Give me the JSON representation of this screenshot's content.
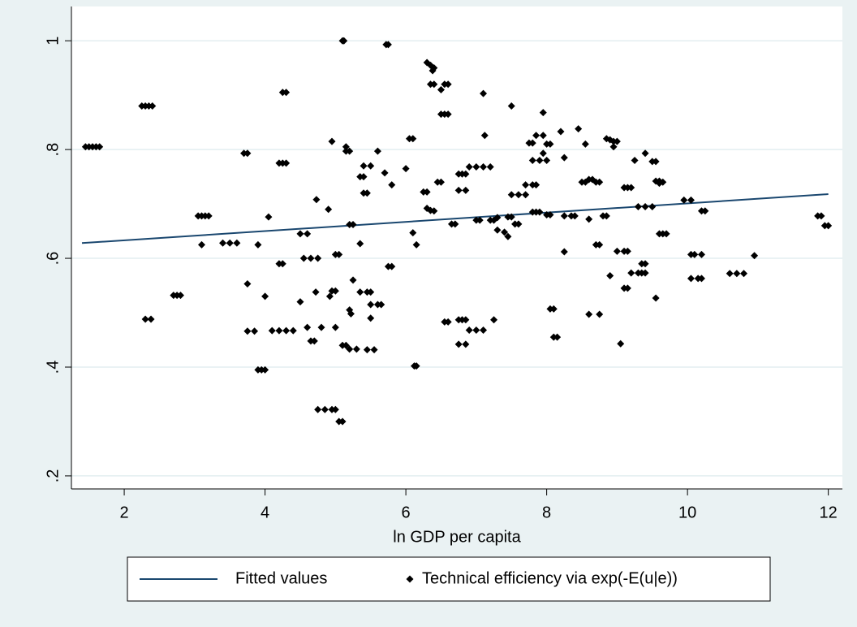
{
  "chart_data": {
    "type": "scatter",
    "x_label": "ln GDP per capita",
    "xlim": [
      1.25,
      12.2
    ],
    "xticks": [
      2,
      4,
      6,
      8,
      10,
      12
    ],
    "ylim": [
      0.176,
      1.063
    ],
    "yticks": [
      {
        "value": 0.2,
        "label": ".2"
      },
      {
        "value": 0.4,
        "label": ".4"
      },
      {
        "value": 0.6,
        "label": ".6"
      },
      {
        "value": 0.8,
        "label": ".8"
      },
      1
    ],
    "grid": true,
    "legend": "bottom",
    "series": [
      {
        "name": "Fitted values",
        "mode": "line",
        "color": "#1a476f",
        "x": [
          1.4,
          12.0
        ],
        "values": [
          0.628,
          0.718
        ]
      },
      {
        "name": "Technical efficiency via exp(-E(u|e))",
        "mode": "markers",
        "color": "#000000",
        "x": [
          1.45,
          1.5,
          1.55,
          1.6,
          1.65,
          2.25,
          2.3,
          2.35,
          2.4,
          2.3,
          2.38,
          2.7,
          2.75,
          2.8,
          3.05,
          3.1,
          3.15,
          3.2,
          3.1,
          3.4,
          3.5,
          3.6,
          3.7,
          3.75,
          3.75,
          3.75,
          3.85,
          3.9,
          3.9,
          3.95,
          4.0,
          4.0,
          4.05,
          4.1,
          4.2,
          4.3,
          4.4,
          4.2,
          4.25,
          4.3,
          4.25,
          4.3,
          4.2,
          4.25,
          4.5,
          4.5,
          4.6,
          4.55,
          4.65,
          4.75,
          4.6,
          4.65,
          4.7,
          4.72,
          4.73,
          4.75,
          4.85,
          4.95,
          5.0,
          4.8,
          4.9,
          4.92,
          4.95,
          5.0,
          4.95,
          5.0,
          5.0,
          5.05,
          5.05,
          5.1,
          5.1,
          5.12,
          5.1,
          5.15,
          5.15,
          5.15,
          5.2,
          5.2,
          5.25,
          5.2,
          5.22,
          5.2,
          5.3,
          5.25,
          5.35,
          5.45,
          5.5,
          5.35,
          5.4,
          5.4,
          5.45,
          5.4,
          5.5,
          5.35,
          5.45,
          5.55,
          5.5,
          5.6,
          5.65,
          5.5,
          5.6,
          5.7,
          5.72,
          5.75,
          5.75,
          5.8,
          5.8,
          6.0,
          6.05,
          6.1,
          6.1,
          6.12,
          6.15,
          6.15,
          6.25,
          6.3,
          6.3,
          6.35,
          6.38,
          6.4,
          6.35,
          6.4,
          6.3,
          6.35,
          6.4,
          6.45,
          6.5,
          6.5,
          6.55,
          6.6,
          6.5,
          6.55,
          6.6,
          6.55,
          6.6,
          6.65,
          6.7,
          6.75,
          6.8,
          6.85,
          6.75,
          6.85,
          6.75,
          6.8,
          6.85,
          6.75,
          6.85,
          6.9,
          7.0,
          7.1,
          7.2,
          6.9,
          7.0,
          7.1,
          7.0,
          7.05,
          7.1,
          7.12,
          7.2,
          7.25,
          7.3,
          7.25,
          7.3,
          7.4,
          7.45,
          7.45,
          7.5,
          7.5,
          7.6,
          7.7,
          7.5,
          7.55,
          7.6,
          7.7,
          7.8,
          7.85,
          7.75,
          7.8,
          7.8,
          7.85,
          7.9,
          7.8,
          7.9,
          8.0,
          7.85,
          7.95,
          7.95,
          7.95,
          8.0,
          8.05,
          8.0,
          8.05,
          8.05,
          8.1,
          8.1,
          8.15,
          8.2,
          8.25,
          8.25,
          8.25,
          8.35,
          8.4,
          8.45,
          8.5,
          8.55,
          8.6,
          8.65,
          8.7,
          8.75,
          8.55,
          8.6,
          8.6,
          8.7,
          8.75,
          8.75,
          8.8,
          8.85,
          8.85,
          8.9,
          8.95,
          9.0,
          8.9,
          8.95,
          9.0,
          9.1,
          9.15,
          9.05,
          9.1,
          9.15,
          9.2,
          9.1,
          9.15,
          9.2,
          9.3,
          9.35,
          9.4,
          9.25,
          9.3,
          9.4,
          9.5,
          9.35,
          9.4,
          9.4,
          9.5,
          9.55,
          9.55,
          9.6,
          9.65,
          9.6,
          9.55,
          9.6,
          9.65,
          9.7,
          9.95,
          10.05,
          10.05,
          10.1,
          10.2,
          10.05,
          10.15,
          10.2,
          10.2,
          10.25,
          10.6,
          10.7,
          10.8,
          10.95,
          11.85,
          11.9,
          11.95,
          12.0
        ],
        "values": [
          0.805,
          0.805,
          0.805,
          0.805,
          0.805,
          0.88,
          0.88,
          0.88,
          0.88,
          0.488,
          0.488,
          0.532,
          0.532,
          0.532,
          0.678,
          0.678,
          0.678,
          0.678,
          0.625,
          0.628,
          0.628,
          0.628,
          0.793,
          0.793,
          0.553,
          0.466,
          0.466,
          0.625,
          0.395,
          0.395,
          0.395,
          0.53,
          0.676,
          0.467,
          0.467,
          0.467,
          0.467,
          0.775,
          0.775,
          0.775,
          0.905,
          0.905,
          0.59,
          0.59,
          0.52,
          0.645,
          0.645,
          0.6,
          0.6,
          0.6,
          0.473,
          0.448,
          0.448,
          0.538,
          0.708,
          0.322,
          0.322,
          0.322,
          0.322,
          0.473,
          0.69,
          0.53,
          0.54,
          0.54,
          0.815,
          0.473,
          0.607,
          0.607,
          0.3,
          0.3,
          1.0,
          1.0,
          0.44,
          0.44,
          0.805,
          0.797,
          0.797,
          0.662,
          0.662,
          0.505,
          0.498,
          0.433,
          0.433,
          0.56,
          0.538,
          0.538,
          0.538,
          0.75,
          0.75,
          0.72,
          0.72,
          0.77,
          0.77,
          0.627,
          0.432,
          0.432,
          0.515,
          0.515,
          0.515,
          0.49,
          0.797,
          0.757,
          0.993,
          0.993,
          0.585,
          0.585,
          0.735,
          0.765,
          0.82,
          0.82,
          0.647,
          0.402,
          0.402,
          0.625,
          0.722,
          0.722,
          0.96,
          0.955,
          0.945,
          0.95,
          0.92,
          0.92,
          0.692,
          0.688,
          0.687,
          0.74,
          0.74,
          0.865,
          0.865,
          0.865,
          0.91,
          0.92,
          0.92,
          0.483,
          0.483,
          0.663,
          0.663,
          0.755,
          0.755,
          0.755,
          0.725,
          0.725,
          0.487,
          0.487,
          0.487,
          0.442,
          0.442,
          0.768,
          0.768,
          0.768,
          0.768,
          0.468,
          0.468,
          0.468,
          0.67,
          0.67,
          0.903,
          0.826,
          0.67,
          0.67,
          0.675,
          0.487,
          0.652,
          0.648,
          0.64,
          0.676,
          0.676,
          0.717,
          0.717,
          0.717,
          0.88,
          0.663,
          0.663,
          0.735,
          0.735,
          0.735,
          0.812,
          0.812,
          0.685,
          0.685,
          0.685,
          0.78,
          0.78,
          0.78,
          0.826,
          0.826,
          0.868,
          0.793,
          0.81,
          0.81,
          0.68,
          0.68,
          0.507,
          0.507,
          0.455,
          0.455,
          0.833,
          0.612,
          0.785,
          0.678,
          0.678,
          0.678,
          0.838,
          0.74,
          0.74,
          0.745,
          0.745,
          0.74,
          0.74,
          0.81,
          0.672,
          0.497,
          0.625,
          0.625,
          0.497,
          0.678,
          0.678,
          0.82,
          0.818,
          0.815,
          0.815,
          0.568,
          0.805,
          0.613,
          0.613,
          0.613,
          0.443,
          0.73,
          0.73,
          0.73,
          0.545,
          0.545,
          0.573,
          0.573,
          0.573,
          0.573,
          0.78,
          0.695,
          0.695,
          0.695,
          0.59,
          0.59,
          0.793,
          0.778,
          0.778,
          0.742,
          0.742,
          0.74,
          0.738,
          0.527,
          0.645,
          0.645,
          0.645,
          0.707,
          0.707,
          0.607,
          0.607,
          0.607,
          0.563,
          0.563,
          0.563,
          0.687,
          0.687,
          0.572,
          0.572,
          0.572,
          0.605,
          0.678,
          0.678,
          0.66,
          0.66
        ]
      }
    ]
  }
}
